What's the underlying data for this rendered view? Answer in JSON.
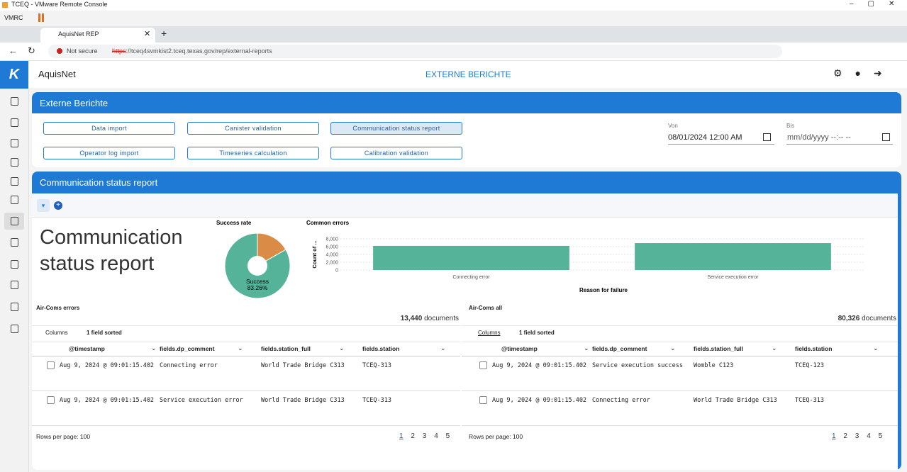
{
  "window": {
    "title": "TCEQ - VMware Remote Console",
    "menu": "VMRC"
  },
  "browser": {
    "tab_title": "AquisNet REP",
    "security": "Not secure",
    "url_scheme": "https",
    "url_rest": "://tceq4svmkist2.tceq.texas.gov/rep/external-reports"
  },
  "app": {
    "name": "AquisNet",
    "page_title": "EXTERNE BERICHTE"
  },
  "reports": {
    "title": "Externe Berichte",
    "buttons": [
      "Data import",
      "Canister validation",
      "Communication status report",
      "Operator log import",
      "Timeseries calculation",
      "Calibration validation"
    ],
    "active_button": 2,
    "from_label": "Von",
    "from_value": "08/01/2024 12:00 AM",
    "to_label": "Bis",
    "to_placeholder": "mm/dd/yyyy --:-- --"
  },
  "report": {
    "title": "Communication status report",
    "heading": "Communication status report"
  },
  "success_chart": {
    "type": "pie",
    "title": "Success rate",
    "categories": [
      "Success",
      null
    ],
    "values": [
      83.26,
      16.74
    ],
    "value_labels": [
      "83.26%",
      null
    ],
    "colors": [
      "#54b399",
      "#da8b45"
    ]
  },
  "errors_chart": {
    "type": "bar",
    "title": "Common errors",
    "y_label": "Count of ...",
    "x_label": "Reason for failure",
    "categories": [
      "Connecting error",
      "Service execution error"
    ],
    "values": [
      6200,
      6900
    ],
    "color": "#54b399",
    "ylim": [
      0,
      8000
    ],
    "yticks": [
      0,
      {
        "value": 2000,
        "label": "2,000"
      },
      {
        "value": 4000,
        "label": "4,000"
      },
      {
        "value": 6000,
        "label": "6,000"
      },
      {
        "value": 8000,
        "label": "8,000"
      }
    ],
    "grid": true
  },
  "tables": [
    {
      "title": "Air-Coms errors",
      "count": "13,440",
      "count_unit": "documents",
      "columns_button": "Columns",
      "sort_status": "1 field sorted",
      "headers": [
        "@timestamp",
        "fields.dp_comment",
        "fields.station_full",
        "fields.station"
      ],
      "rows": [
        [
          "Aug 9, 2024 @ 09:01:15.402",
          "Connecting error",
          "World Trade Bridge C313",
          "TCEQ-313"
        ],
        [
          "Aug 9, 2024 @ 09:01:15.402",
          "Service execution error",
          "World Trade Bridge C313",
          "TCEQ-313"
        ]
      ],
      "rows_per_page": "Rows per page: 100",
      "pages": [
        1,
        2,
        3,
        4,
        5
      ]
    },
    {
      "title": "Air-Coms all",
      "count": "80,326",
      "count_unit": "documents",
      "columns_button": "Columns",
      "sort_status": "1 field sorted",
      "headers": [
        "@timestamp",
        "fields.dp_comment",
        "fields.station_full",
        "fields.station"
      ],
      "rows": [
        [
          "Aug 9, 2024 @ 09:01:15.402",
          "Service execution success",
          "Womble C123",
          "TCEQ-123"
        ],
        [
          "Aug 9, 2024 @ 09:01:15.402",
          "Connecting error",
          "World Trade Bridge C313",
          "TCEQ-313"
        ]
      ],
      "rows_per_page": "Rows per page: 100",
      "pages": [
        1,
        2,
        3,
        4,
        5
      ]
    }
  ]
}
